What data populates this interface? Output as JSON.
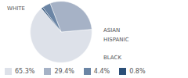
{
  "chart_data": {
    "type": "pie",
    "categories": [
      "WHITE",
      "BLACK",
      "ASIAN",
      "HISPANIC"
    ],
    "values": [
      65.3,
      29.4,
      4.4,
      0.8
    ],
    "value_labels": [
      "65.3%",
      "29.4%",
      "4.4%",
      "0.8%"
    ],
    "colors": [
      "#dde1e9",
      "#a6b2c6",
      "#6b85a5",
      "#2c4f77"
    ],
    "legend": "bottom"
  }
}
